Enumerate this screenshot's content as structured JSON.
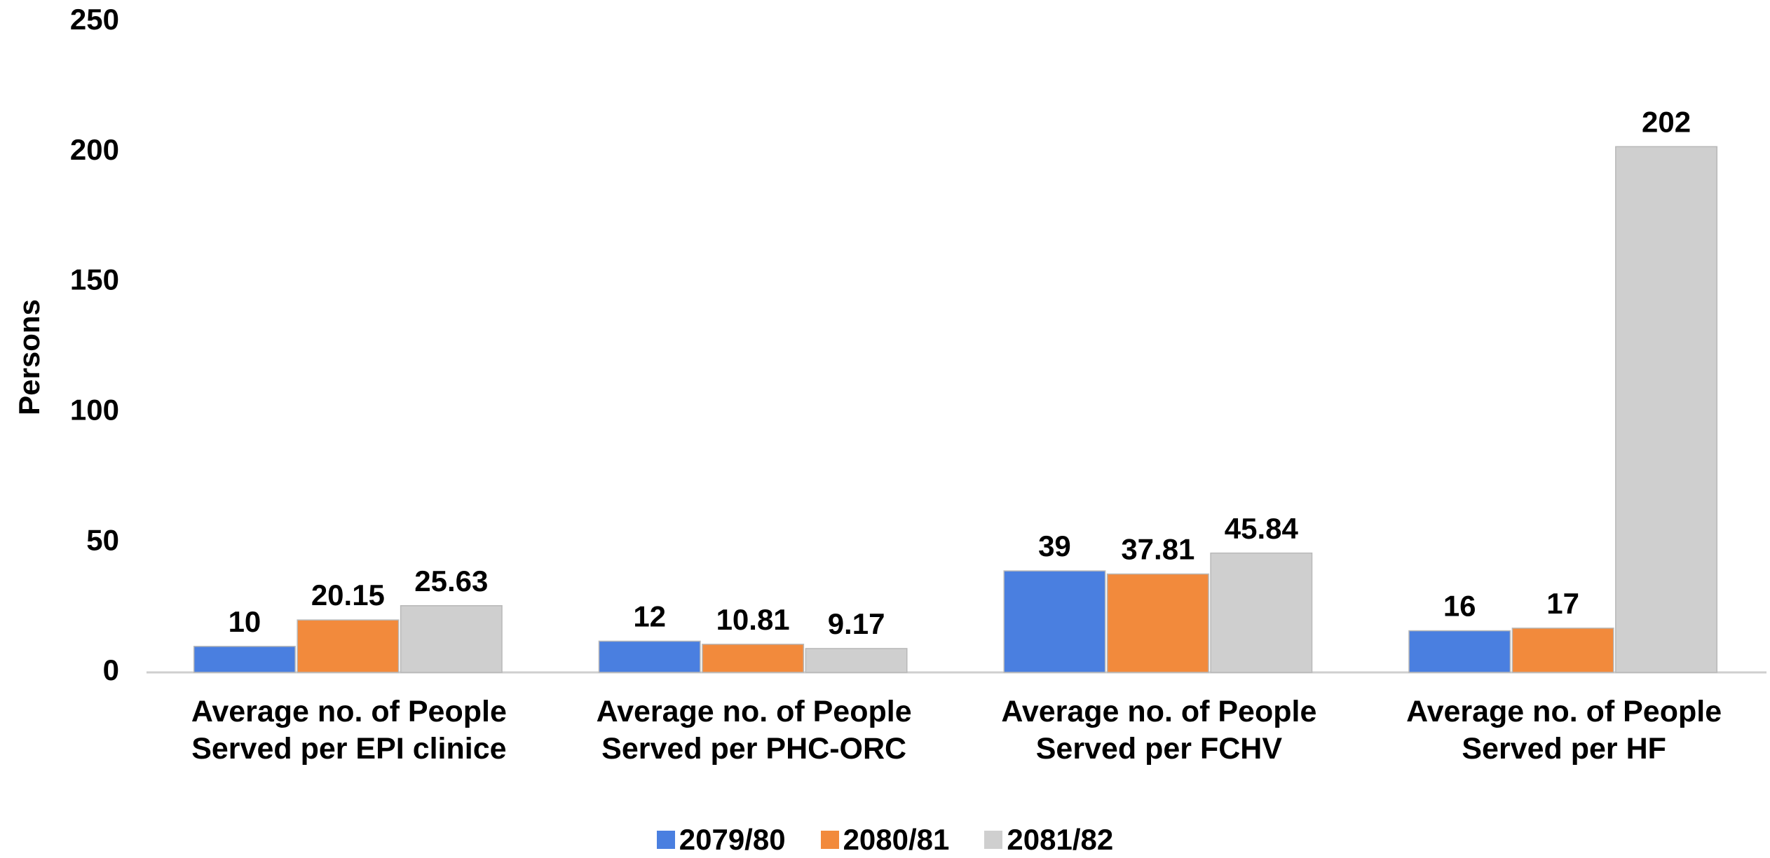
{
  "chart_data": {
    "type": "bar",
    "y_label": "Persons",
    "categories": [
      "Average no. of People Served per EPI clinice",
      "Average no. of People Served per PHC-ORC",
      "Average no. of People Served per FCHV",
      "Average no. of People Served per HF"
    ],
    "series": [
      {
        "name": "2079/80",
        "color": "#4a7fe0",
        "values": [
          10,
          12,
          39,
          16
        ]
      },
      {
        "name": "2080/81",
        "color": "#f28a3c",
        "values": [
          20.15,
          10.81,
          37.81,
          17
        ]
      },
      {
        "name": "2081/82",
        "color": "#cfcfcf",
        "values": [
          25.63,
          9.17,
          45.84,
          202
        ]
      }
    ],
    "ylim": [
      0,
      250
    ],
    "yticks": [
      0,
      50,
      100,
      150,
      200,
      250
    ],
    "legend": "bottom"
  }
}
